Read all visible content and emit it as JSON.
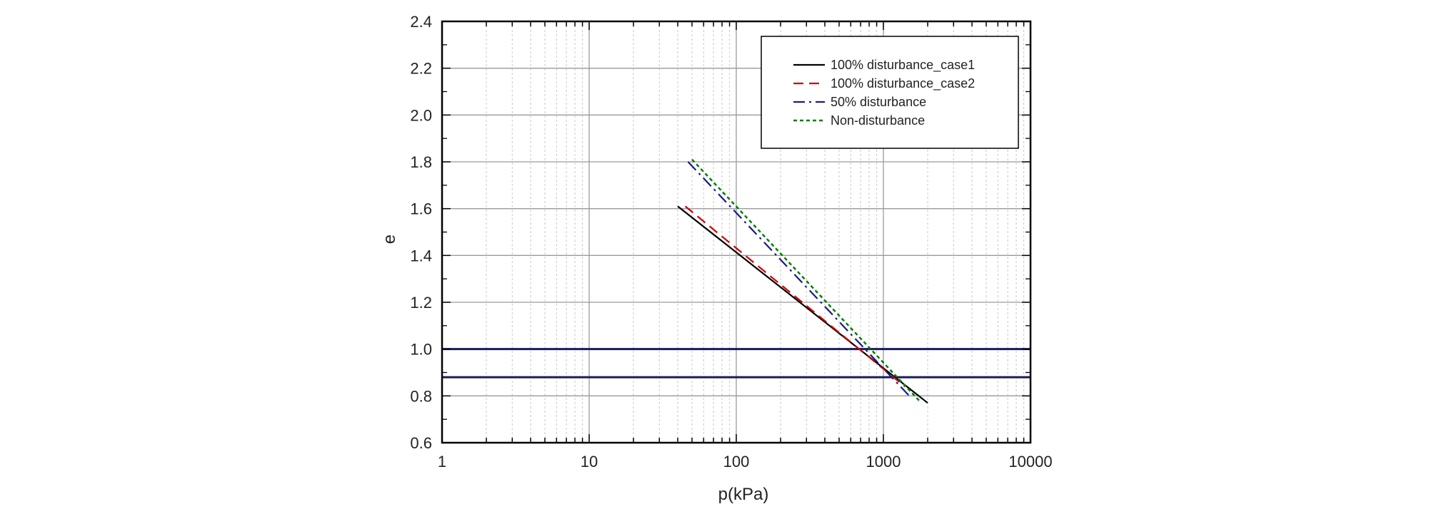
{
  "chart_data": {
    "type": "line",
    "title": "",
    "xlabel": "p(kPa)",
    "ylabel": "e",
    "x_scale": "log",
    "xlim": [
      1,
      10000
    ],
    "ylim": [
      0.6,
      2.4
    ],
    "x_ticks": [
      "1",
      "10",
      "100",
      "1000",
      "10000"
    ],
    "y_ticks": [
      "0.6",
      "0.8",
      "1.0",
      "1.2",
      "1.4",
      "1.6",
      "1.8",
      "2.0",
      "2.2",
      "2.4"
    ],
    "grid": true,
    "legend_position": "top-right",
    "series": [
      {
        "name": "100% disturbance_case1",
        "color": "#000000",
        "dash": "solid",
        "x": [
          40,
          2000
        ],
        "y": [
          1.61,
          0.77
        ]
      },
      {
        "name": "100% disturbance_case2",
        "color": "#cc0000",
        "dash": "dashed",
        "x": [
          45,
          1400
        ],
        "y": [
          1.61,
          0.84
        ]
      },
      {
        "name": "50% disturbance",
        "color": "#1a1a8c",
        "dash": "dash-dot",
        "x": [
          47,
          1500
        ],
        "y": [
          1.8,
          0.8
        ]
      },
      {
        "name": "Non-disturbance",
        "color": "#008000",
        "dash": "dotted",
        "x": [
          50,
          1750
        ],
        "y": [
          1.81,
          0.78
        ]
      }
    ],
    "reference_lines": [
      {
        "y": 1.0,
        "color": "#1a1a5c"
      },
      {
        "y": 0.88,
        "color": "#1a1a5c"
      }
    ]
  }
}
